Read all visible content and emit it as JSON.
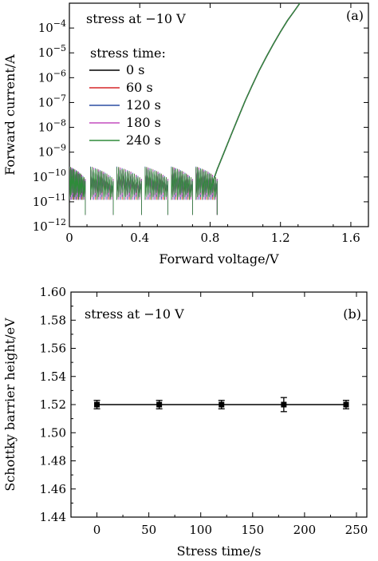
{
  "chart_data": [
    {
      "type": "line",
      "panel_label": "(a)",
      "annotation": "stress at −10 V",
      "xlabel": "Forward voltage/V",
      "ylabel": "Forward current/A",
      "xlim": [
        0,
        1.7
      ],
      "ylim": [
        1e-12,
        0.001
      ],
      "y_scale": "log",
      "x_ticks": [
        0,
        0.4,
        0.8,
        1.2,
        1.6
      ],
      "x_tick_labels": [
        "0",
        "0.4",
        "0.8",
        "1.2",
        "1.6"
      ],
      "y_ticks": [
        1e-12,
        1e-11,
        1e-10,
        1e-09,
        1e-08,
        1e-07,
        1e-06,
        1e-05,
        0.0001
      ],
      "y_tick_labels": [
        {
          "base": "10",
          "exp": "−12"
        },
        {
          "base": "10",
          "exp": "−11"
        },
        {
          "base": "10",
          "exp": "−10"
        },
        {
          "base": "10",
          "exp": "−9"
        },
        {
          "base": "10",
          "exp": "−8"
        },
        {
          "base": "10",
          "exp": "−7"
        },
        {
          "base": "10",
          "exp": "−6"
        },
        {
          "base": "10",
          "exp": "−5"
        },
        {
          "base": "10",
          "exp": "−4"
        }
      ],
      "legend_title": "stress time:",
      "legend_position": "top-left",
      "series": [
        {
          "name": "0 s",
          "color": "#000000"
        },
        {
          "name": "60 s",
          "color": "#d62728"
        },
        {
          "name": "120 s",
          "color": "#2b4fa3"
        },
        {
          "name": "180 s",
          "color": "#c44dbd"
        },
        {
          "name": "240 s",
          "color": "#2e8b3a"
        }
      ],
      "forward_curve": {
        "x": [
          0.8,
          0.84,
          0.88,
          0.92,
          0.96,
          1.0,
          1.04,
          1.08,
          1.12,
          1.16,
          1.2,
          1.24,
          1.28,
          1.31
        ],
        "y": [
          3e-11,
          2e-10,
          1e-09,
          5e-09,
          2.5e-08,
          1.2e-07,
          5e-07,
          2e-06,
          7e-06,
          2.3e-05,
          7e-05,
          0.0002,
          0.0005,
          0.001
        ]
      },
      "noise_floor_segments": [
        {
          "x_start": 0.0,
          "x_end": 0.09
        },
        {
          "x_start": 0.12,
          "x_end": 0.25
        },
        {
          "x_start": 0.27,
          "x_end": 0.41
        },
        {
          "x_start": 0.43,
          "x_end": 0.56
        },
        {
          "x_start": 0.58,
          "x_end": 0.7
        },
        {
          "x_start": 0.72,
          "x_end": 0.84
        }
      ]
    },
    {
      "type": "scatter",
      "panel_label": "(b)",
      "annotation": "stress at −10 V",
      "xlabel": "Stress time/s",
      "ylabel": "Schottky barrier height/eV",
      "xlim": [
        -25,
        260
      ],
      "ylim": [
        1.44,
        1.6
      ],
      "x_ticks": [
        0,
        50,
        100,
        150,
        200,
        250
      ],
      "x_tick_labels": [
        "0",
        "50",
        "100",
        "150",
        "200",
        "250"
      ],
      "y_ticks": [
        1.44,
        1.46,
        1.48,
        1.5,
        1.52,
        1.54,
        1.56,
        1.58,
        1.6
      ],
      "y_tick_labels": [
        "1.44",
        "1.46",
        "1.48",
        "1.50",
        "1.52",
        "1.54",
        "1.56",
        "1.58",
        "1.60"
      ],
      "x": [
        0,
        60,
        120,
        180,
        240
      ],
      "y": [
        1.52,
        1.52,
        1.52,
        1.52,
        1.52
      ],
      "yerr": [
        0.003,
        0.003,
        0.003,
        0.005,
        0.003
      ],
      "color": "#000000"
    }
  ]
}
